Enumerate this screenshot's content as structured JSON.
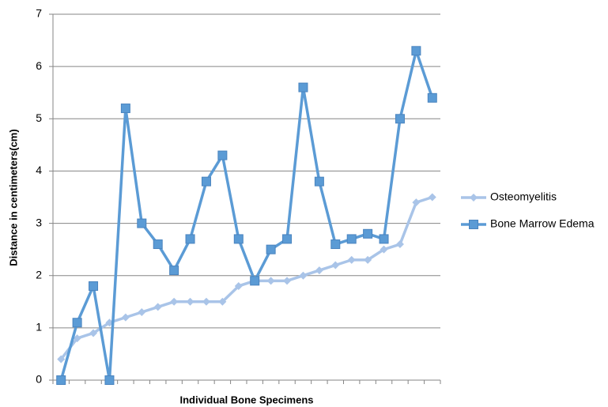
{
  "chart_data": {
    "type": "line",
    "x_label": "Individual Bone Specimens",
    "y_label": "Distance in centimeters(cm)",
    "categories": [
      null,
      null,
      null,
      null,
      null,
      null,
      null,
      null,
      null,
      null,
      null,
      null,
      null,
      null,
      null,
      null,
      null,
      null,
      null,
      null,
      null,
      null,
      null,
      null
    ],
    "series": [
      {
        "name": "Osteomyelitis",
        "color": "#a9c4e8",
        "marker": "diamond",
        "values": [
          0.4,
          0.8,
          0.9,
          1.1,
          1.2,
          1.3,
          1.4,
          1.5,
          1.5,
          1.5,
          1.5,
          1.8,
          1.9,
          1.9,
          1.9,
          2.0,
          2.1,
          2.2,
          2.3,
          2.3,
          2.5,
          2.6,
          3.4,
          3.5
        ]
      },
      {
        "name": "Bone Marrow Edema",
        "color": "#5b9bd5",
        "marker": "square",
        "values": [
          0,
          1.1,
          1.8,
          0,
          5.2,
          3.0,
          2.6,
          2.1,
          2.7,
          3.8,
          4.3,
          2.7,
          1.9,
          2.5,
          2.7,
          5.6,
          3.8,
          2.6,
          2.7,
          2.8,
          2.7,
          5.0,
          6.3,
          5.4
        ]
      }
    ],
    "ylim": [
      0,
      7
    ],
    "yticks": [
      0,
      1,
      2,
      3,
      4,
      5,
      6,
      7
    ],
    "grid": true,
    "legend": "right"
  }
}
